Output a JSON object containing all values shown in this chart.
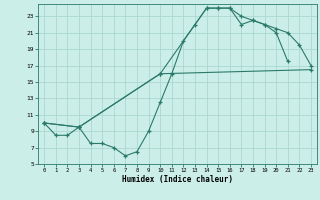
{
  "xlabel": "Humidex (Indice chaleur)",
  "bg_color": "#cceee8",
  "grid_color": "#aad8d0",
  "line_color": "#2a7a6a",
  "xlim": [
    -0.5,
    23.5
  ],
  "ylim": [
    5,
    24.5
  ],
  "xticks": [
    0,
    1,
    2,
    3,
    4,
    5,
    6,
    7,
    8,
    9,
    10,
    11,
    12,
    13,
    14,
    15,
    16,
    17,
    18,
    19,
    20,
    21,
    22,
    23
  ],
  "yticks": [
    5,
    7,
    9,
    11,
    13,
    15,
    17,
    19,
    21,
    23
  ],
  "curve1_x": [
    0,
    1,
    2,
    3,
    4,
    5,
    6,
    7,
    8,
    9,
    10,
    11,
    12,
    13,
    14,
    15,
    16,
    17,
    18,
    19,
    20,
    21
  ],
  "curve1_y": [
    10,
    8.5,
    8.5,
    9.5,
    7.5,
    7.5,
    7,
    6,
    6.5,
    9,
    12.5,
    16,
    20,
    22,
    24,
    24,
    24,
    23,
    22.5,
    22,
    21,
    17.5
  ],
  "curve2_x": [
    0,
    3,
    10,
    14,
    15,
    16,
    17,
    18,
    19,
    20,
    21,
    22,
    23
  ],
  "curve2_y": [
    10,
    9.5,
    16,
    24,
    24,
    24,
    22,
    22.5,
    22,
    21.5,
    21,
    19.5,
    17
  ],
  "curve3_x": [
    0,
    3,
    10,
    23
  ],
  "curve3_y": [
    10,
    9.5,
    16,
    16.5
  ]
}
